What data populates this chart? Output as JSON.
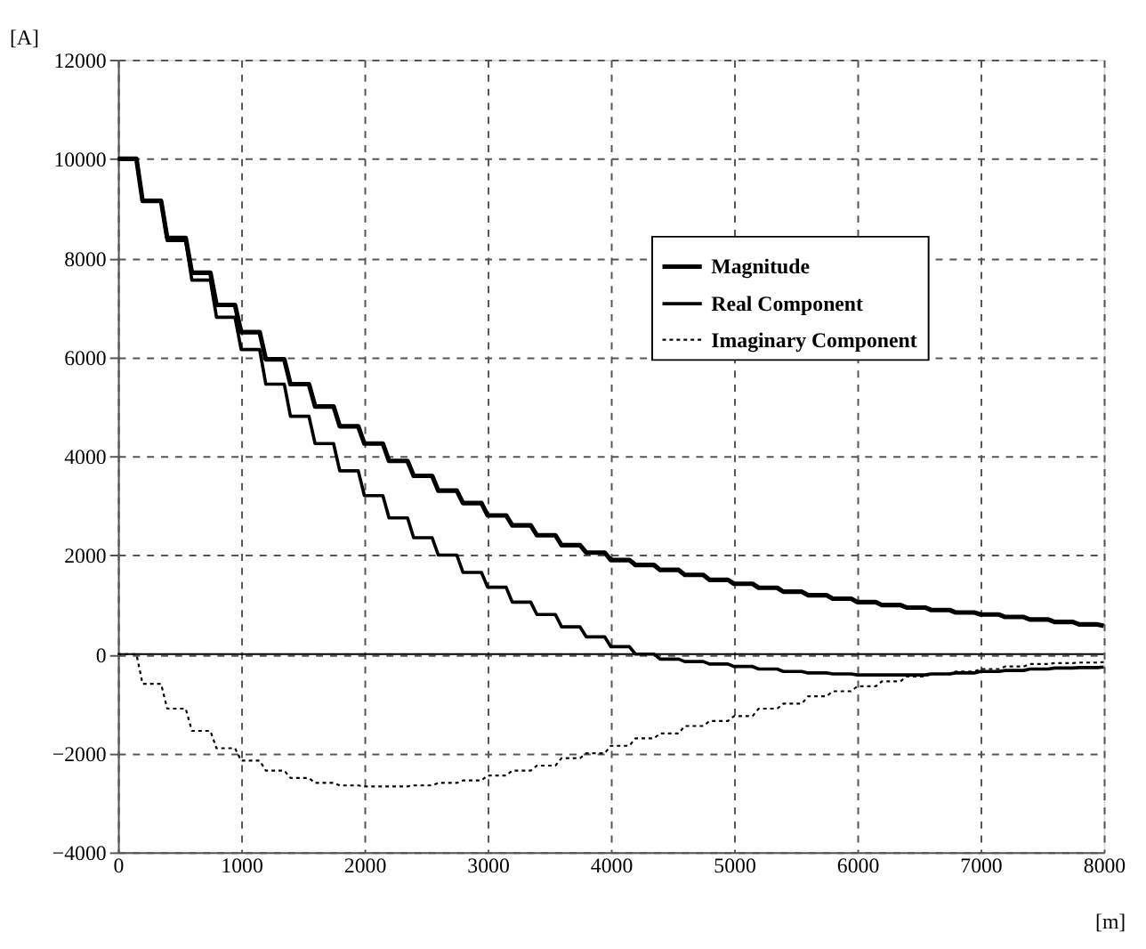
{
  "chart_data": {
    "type": "line",
    "xlabel": "[m]",
    "ylabel": "[A]",
    "x": [
      0,
      150,
      200,
      350,
      400,
      550,
      600,
      750,
      800,
      950,
      1000,
      1150,
      1200,
      1350,
      1400,
      1550,
      1600,
      1750,
      1800,
      1950,
      2000,
      2150,
      2200,
      2350,
      2400,
      2550,
      2600,
      2750,
      2800,
      2950,
      3000,
      3150,
      3200,
      3350,
      3400,
      3550,
      3600,
      3750,
      3800,
      3950,
      4000,
      4150,
      4200,
      4350,
      4400,
      4550,
      4600,
      4750,
      4800,
      4950,
      5000,
      5150,
      5200,
      5350,
      5400,
      5550,
      5600,
      5750,
      5800,
      5950,
      6000,
      6150,
      6200,
      6350,
      6400,
      6550,
      6600,
      6750,
      6800,
      6950,
      7000,
      7150,
      7200,
      7350,
      7400,
      7550,
      7600,
      7750,
      7800,
      7950,
      8000
    ],
    "series": [
      {
        "name": "Magnitude",
        "color": "#000000",
        "line_style": "solid",
        "values": [
          10000,
          10000,
          9150,
          9150,
          8400,
          8400,
          7700,
          7700,
          7050,
          7050,
          6500,
          6500,
          5950,
          5950,
          5450,
          5450,
          5000,
          5000,
          4600,
          4600,
          4250,
          4250,
          3900,
          3900,
          3600,
          3600,
          3300,
          3300,
          3050,
          3050,
          2800,
          2800,
          2600,
          2600,
          2400,
          2400,
          2200,
          2200,
          2050,
          2050,
          1900,
          1900,
          1800,
          1800,
          1700,
          1700,
          1600,
          1600,
          1500,
          1500,
          1420,
          1420,
          1340,
          1340,
          1260,
          1260,
          1190,
          1190,
          1120,
          1120,
          1050,
          1050,
          990,
          990,
          940,
          940,
          890,
          890,
          840,
          840,
          800,
          800,
          750,
          750,
          700,
          700,
          650,
          650,
          600,
          600,
          570
        ]
      },
      {
        "name": "Real Component",
        "color": "#000000",
        "line_style": "solid",
        "values": [
          10000,
          10000,
          9150,
          9150,
          8350,
          8350,
          7550,
          7550,
          6800,
          6800,
          6150,
          6150,
          5450,
          5450,
          4800,
          4800,
          4250,
          4250,
          3700,
          3700,
          3200,
          3200,
          2750,
          2750,
          2350,
          2350,
          2000,
          2000,
          1650,
          1650,
          1350,
          1350,
          1050,
          1050,
          800,
          800,
          550,
          550,
          350,
          350,
          150,
          150,
          0,
          0,
          -100,
          -100,
          -150,
          -150,
          -200,
          -200,
          -250,
          -250,
          -300,
          -300,
          -350,
          -350,
          -380,
          -380,
          -400,
          -400,
          -420,
          -420,
          -420,
          -420,
          -420,
          -420,
          -400,
          -400,
          -380,
          -380,
          -350,
          -350,
          -330,
          -330,
          -300,
          -300,
          -280,
          -280,
          -270,
          -270,
          -260
        ]
      },
      {
        "name": "Imaginary Component",
        "color": "#000000",
        "line_style": "dotted",
        "values": [
          0,
          0,
          -600,
          -600,
          -1100,
          -1100,
          -1550,
          -1550,
          -1900,
          -1900,
          -2150,
          -2150,
          -2350,
          -2350,
          -2500,
          -2500,
          -2600,
          -2600,
          -2650,
          -2650,
          -2670,
          -2670,
          -2670,
          -2670,
          -2650,
          -2650,
          -2600,
          -2600,
          -2550,
          -2550,
          -2450,
          -2450,
          -2350,
          -2350,
          -2250,
          -2250,
          -2100,
          -2100,
          -2000,
          -2000,
          -1850,
          -1850,
          -1700,
          -1700,
          -1600,
          -1600,
          -1450,
          -1450,
          -1350,
          -1350,
          -1250,
          -1250,
          -1100,
          -1100,
          -1000,
          -1000,
          -850,
          -850,
          -750,
          -750,
          -650,
          -650,
          -550,
          -550,
          -450,
          -450,
          -400,
          -400,
          -350,
          -350,
          -300,
          -300,
          -250,
          -250,
          -200,
          -200,
          -180,
          -180,
          -170,
          -170,
          -160
        ]
      }
    ],
    "xlim": [
      0,
      8000
    ],
    "xticks": [
      0,
      1000,
      2000,
      3000,
      4000,
      5000,
      6000,
      7000,
      8000
    ],
    "ylim": [
      -4000,
      12000
    ],
    "yticks": [
      -4000,
      -2000,
      0,
      2000,
      4000,
      6000,
      8000,
      10000,
      12000
    ],
    "ref_lines": [
      {
        "axis": "y",
        "value": 0,
        "color": "#000000",
        "line_style": "solid"
      }
    ],
    "grid": true,
    "legend": "top right",
    "marker": "none"
  }
}
